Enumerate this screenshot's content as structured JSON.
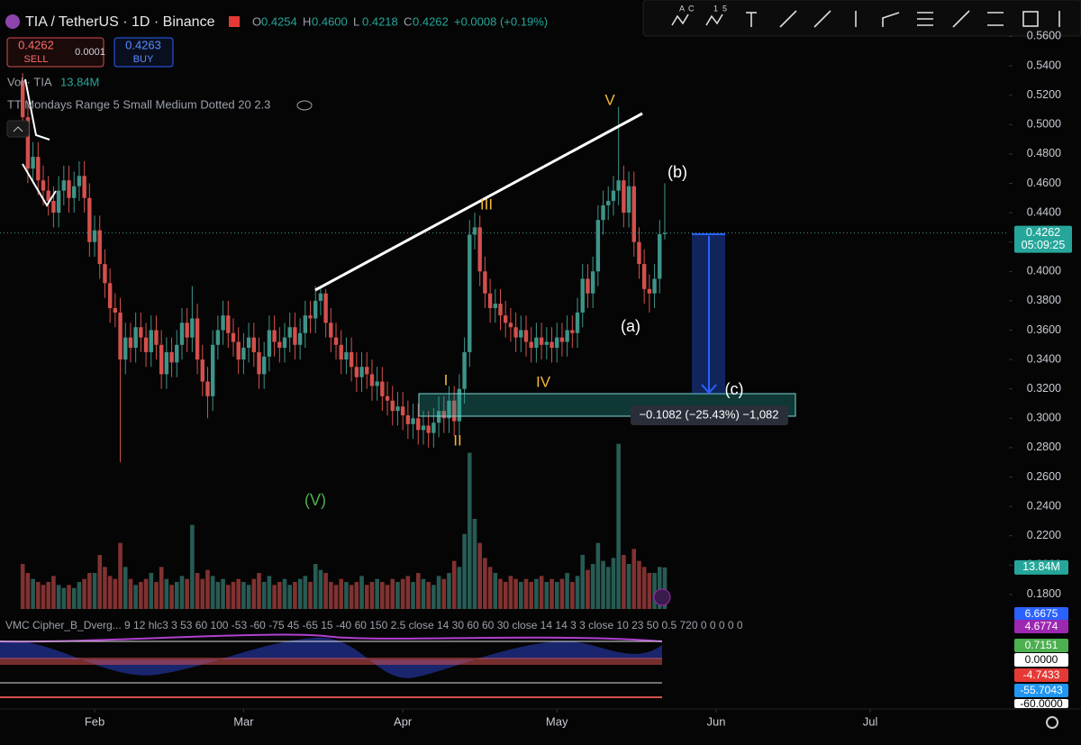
{
  "header": {
    "symbol": "TIA / TetherUS · 1D · Binance",
    "ohlc": [
      {
        "key": "O",
        "value": "0.4254"
      },
      {
        "key": "H",
        "value": "0.4600"
      },
      {
        "key": "L",
        "value": "0.4218"
      },
      {
        "key": "C",
        "value": "0.4262"
      }
    ],
    "change": "+0.0008 (+0.19%)",
    "sell_price": "0.4262",
    "sell": "SELL",
    "spread": "0.0001",
    "buy_price": "0.4263",
    "buy": "BUY",
    "volume_title": "Vol · TIA",
    "volume_value": "13.84M",
    "indicator": "TT Mondays Range 5 Small Medium Dotted 20 2.3"
  },
  "toolbar": {
    "labels": [
      "A",
      "C",
      "1",
      "5"
    ]
  },
  "chart_data": {
    "type": "candlestick",
    "x": [
      18,
      19,
      20,
      21,
      22,
      23,
      24,
      25,
      26,
      27,
      28,
      29,
      30,
      31,
      32,
      33,
      34,
      35,
      36,
      37,
      38,
      39,
      40,
      41,
      42,
      43,
      44,
      45,
      46,
      47,
      48,
      49,
      50,
      51,
      52,
      53,
      54,
      55,
      56,
      57,
      58,
      59,
      60,
      61,
      62,
      63,
      64,
      65,
      66,
      67,
      68,
      69,
      70,
      71,
      72,
      73,
      74,
      75,
      76,
      77,
      78,
      79,
      80,
      81,
      82,
      83,
      84,
      85,
      86,
      87,
      88,
      89,
      90,
      91,
      92,
      93,
      94,
      95,
      96,
      97,
      98,
      99,
      100,
      101,
      102,
      103,
      104,
      105,
      106,
      107,
      108,
      109,
      110,
      111,
      112,
      113,
      114,
      115,
      116,
      117,
      118,
      119,
      120,
      121,
      122,
      123,
      124,
      125,
      126,
      127,
      128,
      129,
      130,
      131,
      132,
      133,
      134,
      135,
      136,
      137,
      138,
      139,
      140,
      141,
      142,
      143
    ],
    "open": [
      0.53,
      0.505,
      0.47,
      0.478,
      0.462,
      0.455,
      0.448,
      0.44,
      0.455,
      0.462,
      0.45,
      0.458,
      0.465,
      0.45,
      0.42,
      0.428,
      0.405,
      0.392,
      0.375,
      0.372,
      0.34,
      0.355,
      0.348,
      0.362,
      0.355,
      0.345,
      0.36,
      0.35,
      0.33,
      0.345,
      0.338,
      0.35,
      0.365,
      0.355,
      0.368,
      0.34,
      0.325,
      0.315,
      0.35,
      0.36,
      0.37,
      0.358,
      0.352,
      0.34,
      0.348,
      0.355,
      0.345,
      0.33,
      0.342,
      0.36,
      0.352,
      0.348,
      0.355,
      0.362,
      0.35,
      0.358,
      0.37,
      0.368,
      0.38,
      0.385,
      0.365,
      0.355,
      0.35,
      0.34,
      0.345,
      0.335,
      0.328,
      0.335,
      0.33,
      0.322,
      0.325,
      0.315,
      0.312,
      0.305,
      0.308,
      0.302,
      0.296,
      0.3,
      0.292,
      0.295,
      0.29,
      0.297,
      0.305,
      0.3,
      0.312,
      0.298,
      0.32,
      0.345,
      0.425,
      0.43,
      0.4,
      0.385,
      0.375,
      0.378,
      0.37,
      0.365,
      0.362,
      0.355,
      0.36,
      0.352,
      0.348,
      0.355,
      0.35,
      0.352,
      0.348,
      0.355,
      0.352,
      0.36,
      0.358,
      0.372,
      0.395,
      0.385,
      0.4,
      0.435,
      0.445,
      0.448,
      0.455,
      0.462,
      0.44,
      0.458,
      0.42,
      0.405,
      0.388,
      0.385,
      0.395,
      0.4254
    ],
    "high": [
      0.535,
      0.515,
      0.488,
      0.488,
      0.472,
      0.465,
      0.458,
      0.465,
      0.472,
      0.472,
      0.468,
      0.475,
      0.475,
      0.46,
      0.438,
      0.438,
      0.415,
      0.402,
      0.385,
      0.382,
      0.365,
      0.365,
      0.372,
      0.372,
      0.365,
      0.37,
      0.37,
      0.36,
      0.355,
      0.355,
      0.36,
      0.375,
      0.375,
      0.39,
      0.378,
      0.35,
      0.335,
      0.36,
      0.37,
      0.38,
      0.38,
      0.368,
      0.362,
      0.358,
      0.365,
      0.365,
      0.355,
      0.352,
      0.37,
      0.37,
      0.362,
      0.365,
      0.372,
      0.372,
      0.368,
      0.38,
      0.38,
      0.39,
      0.388,
      0.388,
      0.375,
      0.365,
      0.36,
      0.355,
      0.355,
      0.345,
      0.345,
      0.345,
      0.34,
      0.335,
      0.335,
      0.325,
      0.322,
      0.318,
      0.318,
      0.312,
      0.31,
      0.31,
      0.305,
      0.305,
      0.307,
      0.315,
      0.315,
      0.322,
      0.322,
      0.33,
      0.355,
      0.435,
      0.44,
      0.438,
      0.41,
      0.395,
      0.388,
      0.388,
      0.38,
      0.375,
      0.372,
      0.37,
      0.37,
      0.362,
      0.365,
      0.365,
      0.362,
      0.362,
      0.365,
      0.365,
      0.37,
      0.37,
      0.382,
      0.405,
      0.405,
      0.41,
      0.445,
      0.455,
      0.458,
      0.465,
      0.512,
      0.472,
      0.468,
      0.468,
      0.43,
      0.415,
      0.398,
      0.405,
      0.435,
      0.46
    ],
    "low": [
      0.495,
      0.46,
      0.46,
      0.452,
      0.445,
      0.438,
      0.43,
      0.43,
      0.445,
      0.44,
      0.44,
      0.448,
      0.44,
      0.41,
      0.41,
      0.395,
      0.382,
      0.365,
      0.362,
      0.27,
      0.33,
      0.338,
      0.338,
      0.345,
      0.335,
      0.335,
      0.34,
      0.32,
      0.32,
      0.328,
      0.328,
      0.34,
      0.345,
      0.345,
      0.33,
      0.315,
      0.3,
      0.305,
      0.34,
      0.35,
      0.348,
      0.342,
      0.33,
      0.33,
      0.338,
      0.335,
      0.32,
      0.32,
      0.332,
      0.342,
      0.338,
      0.338,
      0.345,
      0.34,
      0.34,
      0.348,
      0.358,
      0.358,
      0.37,
      0.355,
      0.345,
      0.34,
      0.33,
      0.33,
      0.325,
      0.318,
      0.318,
      0.32,
      0.312,
      0.312,
      0.305,
      0.302,
      0.295,
      0.295,
      0.292,
      0.286,
      0.286,
      0.282,
      0.282,
      0.28,
      0.28,
      0.287,
      0.29,
      0.29,
      0.288,
      0.288,
      0.31,
      0.335,
      0.415,
      0.39,
      0.375,
      0.365,
      0.365,
      0.36,
      0.355,
      0.352,
      0.345,
      0.345,
      0.342,
      0.338,
      0.338,
      0.34,
      0.34,
      0.338,
      0.338,
      0.342,
      0.342,
      0.348,
      0.348,
      0.362,
      0.375,
      0.375,
      0.39,
      0.425,
      0.435,
      0.438,
      0.445,
      0.43,
      0.43,
      0.41,
      0.395,
      0.378,
      0.372,
      0.375,
      0.385,
      0.4218
    ],
    "close": [
      0.505,
      0.47,
      0.478,
      0.462,
      0.455,
      0.448,
      0.44,
      0.455,
      0.462,
      0.45,
      0.458,
      0.465,
      0.45,
      0.42,
      0.428,
      0.405,
      0.392,
      0.375,
      0.372,
      0.34,
      0.355,
      0.348,
      0.362,
      0.355,
      0.345,
      0.36,
      0.35,
      0.33,
      0.345,
      0.338,
      0.35,
      0.365,
      0.355,
      0.368,
      0.34,
      0.325,
      0.315,
      0.35,
      0.36,
      0.37,
      0.358,
      0.352,
      0.34,
      0.348,
      0.355,
      0.345,
      0.33,
      0.342,
      0.36,
      0.352,
      0.348,
      0.355,
      0.362,
      0.35,
      0.358,
      0.37,
      0.368,
      0.38,
      0.385,
      0.365,
      0.355,
      0.35,
      0.34,
      0.345,
      0.335,
      0.328,
      0.335,
      0.33,
      0.322,
      0.325,
      0.315,
      0.312,
      0.305,
      0.308,
      0.302,
      0.296,
      0.3,
      0.292,
      0.295,
      0.29,
      0.297,
      0.305,
      0.3,
      0.312,
      0.298,
      0.32,
      0.345,
      0.425,
      0.43,
      0.4,
      0.385,
      0.375,
      0.378,
      0.37,
      0.365,
      0.362,
      0.355,
      0.36,
      0.352,
      0.348,
      0.355,
      0.35,
      0.352,
      0.348,
      0.355,
      0.352,
      0.36,
      0.358,
      0.372,
      0.395,
      0.385,
      0.4,
      0.435,
      0.445,
      0.448,
      0.455,
      0.462,
      0.44,
      0.458,
      0.42,
      0.405,
      0.388,
      0.385,
      0.395,
      0.4254,
      0.4262
    ],
    "volume": [
      15,
      12,
      10,
      9,
      8,
      9,
      11,
      8,
      7,
      8,
      7,
      9,
      10,
      12,
      12,
      18,
      14,
      11,
      10,
      22,
      14,
      10,
      8,
      9,
      10,
      12,
      9,
      14,
      10,
      8,
      9,
      11,
      10,
      28,
      12,
      10,
      13,
      11,
      9,
      10,
      8,
      9,
      10,
      9,
      8,
      10,
      12,
      9,
      11,
      8,
      9,
      10,
      8,
      9,
      10,
      11,
      9,
      15,
      13,
      12,
      9,
      8,
      10,
      9,
      8,
      9,
      11,
      8,
      9,
      10,
      9,
      8,
      10,
      9,
      10,
      11,
      9,
      12,
      10,
      9,
      8,
      11,
      10,
      12,
      16,
      14,
      25,
      52,
      30,
      22,
      17,
      14,
      12,
      10,
      9,
      11,
      10,
      9,
      10,
      9,
      10,
      11,
      9,
      10,
      9,
      10,
      12,
      9,
      11,
      18,
      13,
      15,
      22,
      16,
      14,
      17,
      55,
      18,
      15,
      20,
      16,
      14,
      12,
      12,
      14,
      13.84
    ],
    "volume_lim": [
      0,
      60
    ],
    "up_color": "#3e9488",
    "down_color": "#d4504c",
    "xlim": [
      13.58,
      210
    ],
    "xticks": [
      {
        "value": 32,
        "label": "Feb"
      },
      {
        "value": 61,
        "label": "Mar"
      },
      {
        "value": 92,
        "label": "Apr"
      },
      {
        "value": 122,
        "label": "May"
      },
      {
        "value": 153,
        "label": "Jun"
      },
      {
        "value": 183,
        "label": "Jul"
      }
    ],
    "ylim": [
      0.1677,
      0.5848
    ],
    "yticks": [
      {
        "value": 0.18,
        "label": "0.1800"
      },
      {
        "value": 0.2,
        "label": "0.2000"
      },
      {
        "value": 0.22,
        "label": "0.2200"
      },
      {
        "value": 0.24,
        "label": "0.2400"
      },
      {
        "value": 0.26,
        "label": "0.2600"
      },
      {
        "value": 0.28,
        "label": "0.2800"
      },
      {
        "value": 0.3,
        "label": "0.3000"
      },
      {
        "value": 0.32,
        "label": "0.3200"
      },
      {
        "value": 0.34,
        "label": "0.3400"
      },
      {
        "value": 0.36,
        "label": "0.3600"
      },
      {
        "value": 0.38,
        "label": "0.3800"
      },
      {
        "value": 0.4,
        "label": "0.4000"
      },
      {
        "value": 0.42,
        "label": "0.4200"
      },
      {
        "value": 0.44,
        "label": "0.4400"
      },
      {
        "value": 0.46,
        "label": "0.4600"
      },
      {
        "value": 0.48,
        "label": "0.4800"
      },
      {
        "value": 0.5,
        "label": "0.5000"
      },
      {
        "value": 0.52,
        "label": "0.5200"
      },
      {
        "value": 0.54,
        "label": "0.5400"
      },
      {
        "value": 0.56,
        "label": "0.5600"
      }
    ],
    "grid": false,
    "price_label": "0.4262",
    "countdown": "05:09:25",
    "annotations": [
      "V",
      "III",
      "I",
      "II",
      "IV",
      "(b)",
      "(a)",
      "(c)",
      "(V)"
    ],
    "measure": "−0.1082 (−25.43%) −1,082",
    "oscillator": {
      "title": "VMC Cipher_B_Dverg... 9 12 hlc3 3 53 60 100 -53 -60 -75 45 -65 15 -40 60 150 2.5 close 14 30 60 60 30 close 14 14 3 3 close 10 23 50 0.5 720 0 0 0 0 0",
      "levels": [
        "6.6675",
        "4.6774",
        "0.7151",
        "0.0000",
        "-4.7433",
        "-55.7043",
        "-60.0000"
      ]
    }
  }
}
